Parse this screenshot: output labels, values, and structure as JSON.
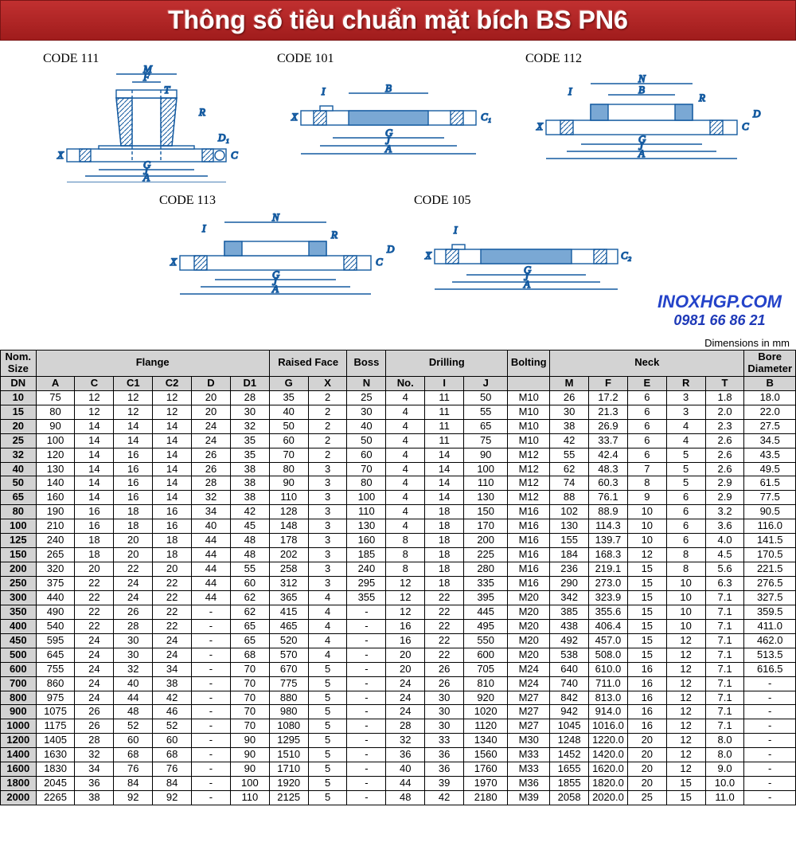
{
  "banner": {
    "title": "Thông số tiêu chuẩn mặt bích BS PN6"
  },
  "diagrams": {
    "c111": "CODE 111",
    "c101": "CODE 101",
    "c112": "CODE 112",
    "c113": "CODE 113",
    "c105": "CODE 105"
  },
  "logo": {
    "name": "INOXHGP.COM",
    "phone": "0981 66 86 21"
  },
  "dims_note": "Dimensions in mm",
  "table": {
    "group_headers": [
      {
        "label": "Nom. Size",
        "span": 1
      },
      {
        "label": "Flange",
        "span": 6
      },
      {
        "label": "Raised Face",
        "span": 2
      },
      {
        "label": "Boss",
        "span": 1
      },
      {
        "label": "Drilling",
        "span": 3
      },
      {
        "label": "Bolting",
        "span": 1
      },
      {
        "label": "Neck",
        "span": 5
      },
      {
        "label": "Bore Diameter",
        "span": 1
      }
    ],
    "col_headers": [
      "DN",
      "A",
      "C",
      "C1",
      "C2",
      "D",
      "D1",
      "G",
      "X",
      "N",
      "No.",
      "I",
      "J",
      "",
      "M",
      "F",
      "E",
      "R",
      "T",
      "B"
    ],
    "rows": [
      [
        "10",
        "75",
        "12",
        "12",
        "12",
        "20",
        "28",
        "35",
        "2",
        "25",
        "4",
        "11",
        "50",
        "M10",
        "26",
        "17.2",
        "6",
        "3",
        "1.8",
        "18.0"
      ],
      [
        "15",
        "80",
        "12",
        "12",
        "12",
        "20",
        "30",
        "40",
        "2",
        "30",
        "4",
        "11",
        "55",
        "M10",
        "30",
        "21.3",
        "6",
        "3",
        "2.0",
        "22.0"
      ],
      [
        "20",
        "90",
        "14",
        "14",
        "14",
        "24",
        "32",
        "50",
        "2",
        "40",
        "4",
        "11",
        "65",
        "M10",
        "38",
        "26.9",
        "6",
        "4",
        "2.3",
        "27.5"
      ],
      [
        "25",
        "100",
        "14",
        "14",
        "14",
        "24",
        "35",
        "60",
        "2",
        "50",
        "4",
        "11",
        "75",
        "M10",
        "42",
        "33.7",
        "6",
        "4",
        "2.6",
        "34.5"
      ],
      [
        "32",
        "120",
        "14",
        "16",
        "14",
        "26",
        "35",
        "70",
        "2",
        "60",
        "4",
        "14",
        "90",
        "M12",
        "55",
        "42.4",
        "6",
        "5",
        "2.6",
        "43.5"
      ],
      [
        "40",
        "130",
        "14",
        "16",
        "14",
        "26",
        "38",
        "80",
        "3",
        "70",
        "4",
        "14",
        "100",
        "M12",
        "62",
        "48.3",
        "7",
        "5",
        "2.6",
        "49.5"
      ],
      [
        "50",
        "140",
        "14",
        "16",
        "14",
        "28",
        "38",
        "90",
        "3",
        "80",
        "4",
        "14",
        "110",
        "M12",
        "74",
        "60.3",
        "8",
        "5",
        "2.9",
        "61.5"
      ],
      [
        "65",
        "160",
        "14",
        "16",
        "14",
        "32",
        "38",
        "110",
        "3",
        "100",
        "4",
        "14",
        "130",
        "M12",
        "88",
        "76.1",
        "9",
        "6",
        "2.9",
        "77.5"
      ],
      [
        "80",
        "190",
        "16",
        "18",
        "16",
        "34",
        "42",
        "128",
        "3",
        "110",
        "4",
        "18",
        "150",
        "M16",
        "102",
        "88.9",
        "10",
        "6",
        "3.2",
        "90.5"
      ],
      [
        "100",
        "210",
        "16",
        "18",
        "16",
        "40",
        "45",
        "148",
        "3",
        "130",
        "4",
        "18",
        "170",
        "M16",
        "130",
        "114.3",
        "10",
        "6",
        "3.6",
        "116.0"
      ],
      [
        "125",
        "240",
        "18",
        "20",
        "18",
        "44",
        "48",
        "178",
        "3",
        "160",
        "8",
        "18",
        "200",
        "M16",
        "155",
        "139.7",
        "10",
        "6",
        "4.0",
        "141.5"
      ],
      [
        "150",
        "265",
        "18",
        "20",
        "18",
        "44",
        "48",
        "202",
        "3",
        "185",
        "8",
        "18",
        "225",
        "M16",
        "184",
        "168.3",
        "12",
        "8",
        "4.5",
        "170.5"
      ],
      [
        "200",
        "320",
        "20",
        "22",
        "20",
        "44",
        "55",
        "258",
        "3",
        "240",
        "8",
        "18",
        "280",
        "M16",
        "236",
        "219.1",
        "15",
        "8",
        "5.6",
        "221.5"
      ],
      [
        "250",
        "375",
        "22",
        "24",
        "22",
        "44",
        "60",
        "312",
        "3",
        "295",
        "12",
        "18",
        "335",
        "M16",
        "290",
        "273.0",
        "15",
        "10",
        "6.3",
        "276.5"
      ],
      [
        "300",
        "440",
        "22",
        "24",
        "22",
        "44",
        "62",
        "365",
        "4",
        "355",
        "12",
        "22",
        "395",
        "M20",
        "342",
        "323.9",
        "15",
        "10",
        "7.1",
        "327.5"
      ],
      [
        "350",
        "490",
        "22",
        "26",
        "22",
        "-",
        "62",
        "415",
        "4",
        "-",
        "12",
        "22",
        "445",
        "M20",
        "385",
        "355.6",
        "15",
        "10",
        "7.1",
        "359.5"
      ],
      [
        "400",
        "540",
        "22",
        "28",
        "22",
        "-",
        "65",
        "465",
        "4",
        "-",
        "16",
        "22",
        "495",
        "M20",
        "438",
        "406.4",
        "15",
        "10",
        "7.1",
        "411.0"
      ],
      [
        "450",
        "595",
        "24",
        "30",
        "24",
        "-",
        "65",
        "520",
        "4",
        "-",
        "16",
        "22",
        "550",
        "M20",
        "492",
        "457.0",
        "15",
        "12",
        "7.1",
        "462.0"
      ],
      [
        "500",
        "645",
        "24",
        "30",
        "24",
        "-",
        "68",
        "570",
        "4",
        "-",
        "20",
        "22",
        "600",
        "M20",
        "538",
        "508.0",
        "15",
        "12",
        "7.1",
        "513.5"
      ],
      [
        "600",
        "755",
        "24",
        "32",
        "34",
        "-",
        "70",
        "670",
        "5",
        "-",
        "20",
        "26",
        "705",
        "M24",
        "640",
        "610.0",
        "16",
        "12",
        "7.1",
        "616.5"
      ],
      [
        "700",
        "860",
        "24",
        "40",
        "38",
        "-",
        "70",
        "775",
        "5",
        "-",
        "24",
        "26",
        "810",
        "M24",
        "740",
        "711.0",
        "16",
        "12",
        "7.1",
        "-"
      ],
      [
        "800",
        "975",
        "24",
        "44",
        "42",
        "-",
        "70",
        "880",
        "5",
        "-",
        "24",
        "30",
        "920",
        "M27",
        "842",
        "813.0",
        "16",
        "12",
        "7.1",
        "-"
      ],
      [
        "900",
        "1075",
        "26",
        "48",
        "46",
        "-",
        "70",
        "980",
        "5",
        "-",
        "24",
        "30",
        "1020",
        "M27",
        "942",
        "914.0",
        "16",
        "12",
        "7.1",
        "-"
      ],
      [
        "1000",
        "1175",
        "26",
        "52",
        "52",
        "-",
        "70",
        "1080",
        "5",
        "-",
        "28",
        "30",
        "1120",
        "M27",
        "1045",
        "1016.0",
        "16",
        "12",
        "7.1",
        "-"
      ],
      [
        "1200",
        "1405",
        "28",
        "60",
        "60",
        "-",
        "90",
        "1295",
        "5",
        "-",
        "32",
        "33",
        "1340",
        "M30",
        "1248",
        "1220.0",
        "20",
        "12",
        "8.0",
        "-"
      ],
      [
        "1400",
        "1630",
        "32",
        "68",
        "68",
        "-",
        "90",
        "1510",
        "5",
        "-",
        "36",
        "36",
        "1560",
        "M33",
        "1452",
        "1420.0",
        "20",
        "12",
        "8.0",
        "-"
      ],
      [
        "1600",
        "1830",
        "34",
        "76",
        "76",
        "-",
        "90",
        "1710",
        "5",
        "-",
        "40",
        "36",
        "1760",
        "M33",
        "1655",
        "1620.0",
        "20",
        "12",
        "9.0",
        "-"
      ],
      [
        "1800",
        "2045",
        "36",
        "84",
        "84",
        "-",
        "100",
        "1920",
        "5",
        "-",
        "44",
        "39",
        "1970",
        "M36",
        "1855",
        "1820.0",
        "20",
        "15",
        "10.0",
        "-"
      ],
      [
        "2000",
        "2265",
        "38",
        "92",
        "92",
        "-",
        "110",
        "2125",
        "5",
        "-",
        "48",
        "42",
        "2180",
        "M39",
        "2058",
        "2020.0",
        "25",
        "15",
        "11.0",
        "-"
      ]
    ]
  },
  "style": {
    "banner_bg_top": "#c13030",
    "banner_bg_bottom": "#a01c1c",
    "banner_text": "#ffffff",
    "header_bg": "#d3d3d3",
    "border": "#000000",
    "logo_color": "#2443c9",
    "diagram_stroke": "#145aa0",
    "diagram_fill": "#7aa8d4",
    "hatch": "#145aa0",
    "font_table_size": 13,
    "font_banner_size": 32
  }
}
